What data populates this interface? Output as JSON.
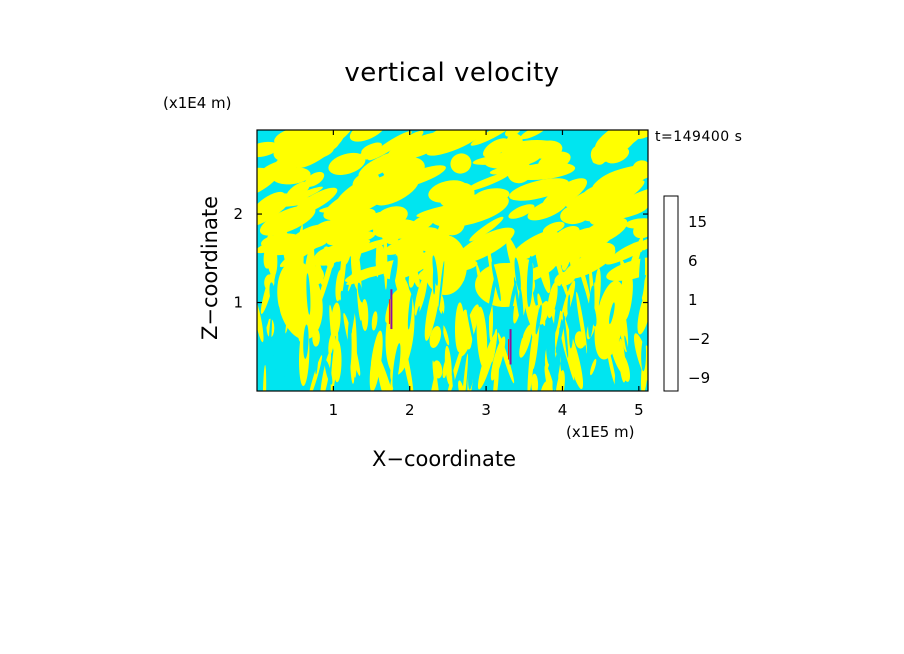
{
  "chart_data": {
    "type": "heatmap",
    "title": "vertical velocity",
    "xlabel": "X−coordinate",
    "ylabel": "Z−coordinate",
    "x_unit": "(x1E5 m)",
    "z_unit": "(x1E4 m)",
    "time_label": "t=149400 s",
    "xlim": [
      0,
      5.12
    ],
    "ylim": [
      0,
      2.95
    ],
    "x_ticks": [
      {
        "value": 1,
        "label": "1"
      },
      {
        "value": 2,
        "label": "2"
      },
      {
        "value": 3,
        "label": "3"
      },
      {
        "value": 4,
        "label": "4"
      },
      {
        "value": 5,
        "label": "5"
      }
    ],
    "y_ticks": [
      {
        "value": 1,
        "label": "1"
      },
      {
        "value": 2,
        "label": "2"
      }
    ],
    "colorbar": {
      "levels": [
        -12,
        -9,
        -6,
        -4,
        -2,
        -1,
        0,
        1,
        2,
        4,
        6,
        9,
        12,
        15,
        18,
        22
      ],
      "colors": [
        "#e8159a",
        "#c4128e",
        "#8e0e9e",
        "#3b10a8",
        "#1e50d2",
        "#00e5f0",
        "#ffff00",
        "#f0d000",
        "#f08a00",
        "#f05a00",
        "#ff1a00",
        "#ff5060",
        "#f09090",
        "#f8c8c8",
        "#fdeeee"
      ],
      "labels": [
        {
          "value": 15,
          "label": "15"
        },
        {
          "value": 6,
          "label": "6"
        },
        {
          "value": 1,
          "label": "1"
        },
        {
          "value": -2,
          "label": "−2"
        },
        {
          "value": -9,
          "label": "−9"
        }
      ]
    },
    "field_colors": {
      "positive": "#ffff00",
      "negative": "#00e5f0"
    }
  }
}
